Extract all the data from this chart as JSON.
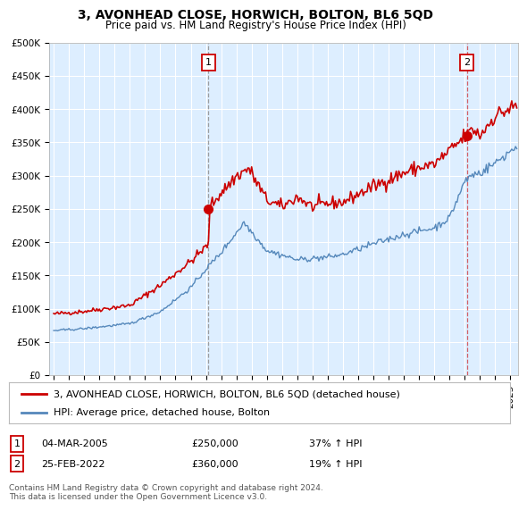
{
  "title": "3, AVONHEAD CLOSE, HORWICH, BOLTON, BL6 5QD",
  "subtitle": "Price paid vs. HM Land Registry's House Price Index (HPI)",
  "ylabel_ticks": [
    "£0",
    "£50K",
    "£100K",
    "£150K",
    "£200K",
    "£250K",
    "£300K",
    "£350K",
    "£400K",
    "£450K",
    "£500K"
  ],
  "ytick_values": [
    0,
    50000,
    100000,
    150000,
    200000,
    250000,
    300000,
    350000,
    400000,
    450000,
    500000
  ],
  "ylim": [
    0,
    500000
  ],
  "xlim_start": 1994.7,
  "xlim_end": 2025.5,
  "transaction1_date": 2005.17,
  "transaction1_price": 250000,
  "transaction1_label": "1",
  "transaction2_date": 2022.15,
  "transaction2_price": 360000,
  "transaction2_label": "2",
  "line_color_red": "#cc0000",
  "line_color_blue": "#5588bb",
  "vline1_color": "#888888",
  "vline2_color": "#cc0000",
  "chart_bg_color": "#ddeeff",
  "grid_color": "#ffffff",
  "background_color": "#ffffff",
  "legend_line1": "3, AVONHEAD CLOSE, HORWICH, BOLTON, BL6 5QD (detached house)",
  "legend_line2": "HPI: Average price, detached house, Bolton",
  "table_row1": [
    "1",
    "04-MAR-2005",
    "£250,000",
    "37% ↑ HPI"
  ],
  "table_row2": [
    "2",
    "25-FEB-2022",
    "£360,000",
    "19% ↑ HPI"
  ],
  "footnote": "Contains HM Land Registry data © Crown copyright and database right 2024.\nThis data is licensed under the Open Government Licence v3.0.",
  "title_fontsize": 10,
  "subtitle_fontsize": 8.5,
  "tick_fontsize": 7.5,
  "legend_fontsize": 8,
  "table_fontsize": 8,
  "footnote_fontsize": 6.5
}
